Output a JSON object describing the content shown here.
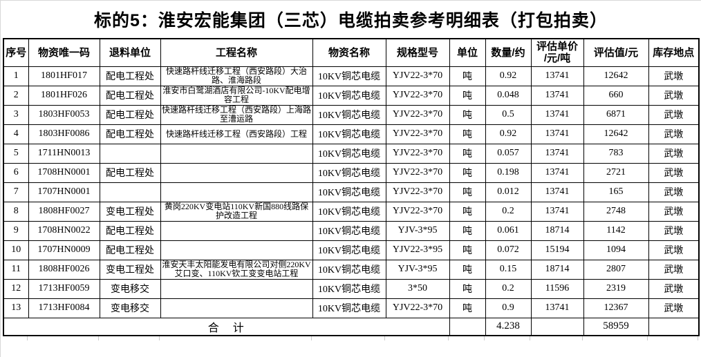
{
  "title": "标的5：淮安宏能集团（三芯）电缆拍卖参考明细表（打包拍卖）",
  "table": {
    "headers": [
      "序号",
      "物资唯一码",
      "退料单位",
      "工程名称",
      "物资名称",
      "规格型号",
      "单位",
      "数量/约",
      "评估单价\n/元/吨",
      "评估值/元",
      "库存地点"
    ],
    "rows": [
      {
        "seq": "1",
        "code": "1801HF017",
        "return_unit": "配电工程处",
        "project": "快速路杆线迁移工程（西安路段）大治路、淮海路段",
        "material": "10KV铜芯电缆",
        "spec": "YJV22-3*70",
        "unit": "吨",
        "quantity": "0.92",
        "unit_price": "13741",
        "value": "12642",
        "location": "武墩"
      },
      {
        "seq": "2",
        "code": "1801HF026",
        "return_unit": "配电工程处",
        "project": "淮安市白鹭湖酒店有限公司-10KV配电增容工程",
        "material": "10KV铜芯电缆",
        "spec": "YJV22-3*70",
        "unit": "吨",
        "quantity": "0.048",
        "unit_price": "13741",
        "value": "660",
        "location": "武墩"
      },
      {
        "seq": "3",
        "code": "1803HF0053",
        "return_unit": "配电工程处",
        "project": "快速路杆线迁移工程（西安路段）上海路至漕运路",
        "material": "10KV铜芯电缆",
        "spec": "YJV22-3*70",
        "unit": "吨",
        "quantity": "0.5",
        "unit_price": "13741",
        "value": "6871",
        "location": "武墩"
      },
      {
        "seq": "4",
        "code": "1803HF0086",
        "return_unit": "配电工程处",
        "project": "快速路杆线迁移工程（西安路段）工程",
        "material": "10KV铜芯电缆",
        "spec": "YJV22-3*70",
        "unit": "吨",
        "quantity": "0.92",
        "unit_price": "13741",
        "value": "12642",
        "location": "武墩"
      },
      {
        "seq": "5",
        "code": "1711HN0013",
        "return_unit": "",
        "project": "",
        "material": "10KV铜芯电缆",
        "spec": "YJV22-3*70",
        "unit": "吨",
        "quantity": "0.057",
        "unit_price": "13741",
        "value": "783",
        "location": "武墩"
      },
      {
        "seq": "6",
        "code": "1708HN0001",
        "return_unit": "配电工程处",
        "project": "",
        "material": "10KV铜芯电缆",
        "spec": "YJV22-3*70",
        "unit": "吨",
        "quantity": "0.198",
        "unit_price": "13741",
        "value": "2721",
        "location": "武墩"
      },
      {
        "seq": "7",
        "code": "1707HN0001",
        "return_unit": "",
        "project": "",
        "material": "10KV铜芯电缆",
        "spec": "YJV22-3*70",
        "unit": "吨",
        "quantity": "0.012",
        "unit_price": "13741",
        "value": "165",
        "location": "武墩"
      },
      {
        "seq": "8",
        "code": "1808HF0027",
        "return_unit": "变电工程处",
        "project": "黄岗220KV变电站110KV新国880线路保护改造工程",
        "material": "10KV铜芯电缆",
        "spec": "YJV22-3*70",
        "unit": "吨",
        "quantity": "0.2",
        "unit_price": "13741",
        "value": "2748",
        "location": "武墩"
      },
      {
        "seq": "9",
        "code": "1708HN0022",
        "return_unit": "配电工程处",
        "project": "",
        "material": "10KV铜芯电缆",
        "spec": "YJV-3*95",
        "unit": "吨",
        "quantity": "0.061",
        "unit_price": "18714",
        "value": "1142",
        "location": "武墩"
      },
      {
        "seq": "10",
        "code": "1707HN0009",
        "return_unit": "配电工程处",
        "project": "",
        "material": "10KV铜芯电缆",
        "spec": "YJV22-3*95",
        "unit": "吨",
        "quantity": "0.072",
        "unit_price": "15194",
        "value": "1094",
        "location": "武墩"
      },
      {
        "seq": "11",
        "code": "1808HF0026",
        "return_unit": "变电工程处",
        "project": "淮安天丰太阳能发电有限公司对侧220KV艾口变、110KV钦工变变电站工程",
        "material": "10KV铜芯电缆",
        "spec": "YJV-3*95",
        "unit": "吨",
        "quantity": "0.15",
        "unit_price": "18714",
        "value": "2807",
        "location": "武墩"
      },
      {
        "seq": "12",
        "code": "1713HF0059",
        "return_unit": "变电移交",
        "project": "",
        "material": "10KV铜芯电缆",
        "spec": "3*50",
        "unit": "吨",
        "quantity": "0.2",
        "unit_price": "11596",
        "value": "2319",
        "location": "武墩"
      },
      {
        "seq": "13",
        "code": "1713HF0084",
        "return_unit": "变电移交",
        "project": "",
        "material": "10KV铜芯电缆",
        "spec": "YJV22-3*70",
        "unit": "吨",
        "quantity": "0.9",
        "unit_price": "13741",
        "value": "12367",
        "location": "武墩"
      }
    ],
    "total": {
      "label": "合　计",
      "unit": "",
      "quantity": "4.238",
      "unit_price": "",
      "value": "58959",
      "location": ""
    }
  },
  "colors": {
    "border": "#000000",
    "light_grid": "#c9c9c9",
    "text": "#000000",
    "background": "#ffffff"
  }
}
